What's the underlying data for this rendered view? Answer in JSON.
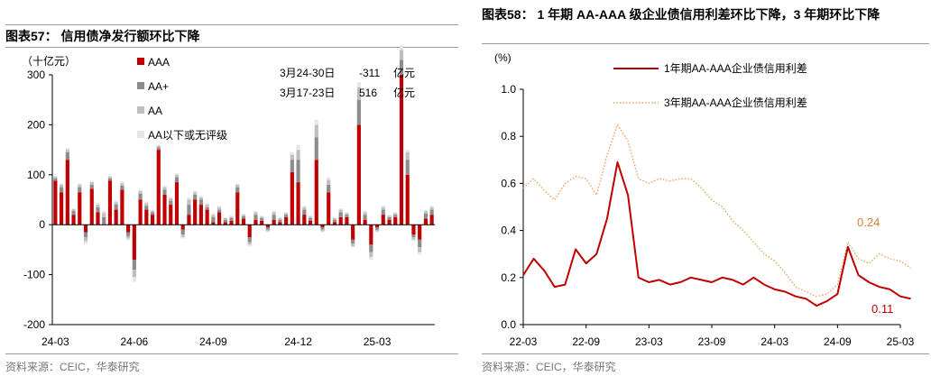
{
  "left": {
    "title": "图表57： 信用债净发行额环比下降",
    "source": "资料来源：CEIC，华泰研究",
    "unit_label": "（十亿元）",
    "annotation": {
      "rows": [
        {
          "period": "3月24-30日",
          "value": "-311",
          "unit": "亿元"
        },
        {
          "period": "3月17-23日",
          "value": "516",
          "unit": "亿元"
        }
      ]
    },
    "chart_data": {
      "type": "bar",
      "stacked": true,
      "ylim": [
        -200,
        300
      ],
      "yticks": [
        -200,
        -100,
        0,
        100,
        200,
        300
      ],
      "x_ticks": [
        {
          "i": 0,
          "label": "24-03"
        },
        {
          "i": 13,
          "label": "24-06"
        },
        {
          "i": 26,
          "label": "24-09"
        },
        {
          "i": 40,
          "label": "24-12"
        },
        {
          "i": 53,
          "label": "25-03"
        }
      ],
      "legend_position": "top-left",
      "colors": {
        "AAA": "#c00000",
        "AA+": "#8c8c8c",
        "AA": "#bfbfbf",
        "AA_below": "#e6e6e6"
      },
      "series": [
        {
          "name": "AAA",
          "values": [
            88,
            65,
            130,
            20,
            65,
            -15,
            72,
            25,
            0,
            88,
            30,
            70,
            -15,
            -70,
            50,
            30,
            20,
            150,
            60,
            40,
            85,
            -10,
            20,
            50,
            40,
            30,
            5,
            25,
            5,
            8,
            65,
            12,
            -25,
            10,
            8,
            -5,
            10,
            5,
            15,
            105,
            85,
            20,
            8,
            130,
            -5,
            65,
            5,
            15,
            15,
            -30,
            200,
            10,
            -40,
            -5,
            20,
            10,
            15,
            300,
            100,
            -20,
            -30,
            12,
            20
          ]
        },
        {
          "name": "AA+",
          "values": [
            5,
            10,
            15,
            8,
            10,
            -10,
            8,
            10,
            15,
            5,
            10,
            8,
            -8,
            -20,
            12,
            8,
            5,
            5,
            10,
            8,
            10,
            -10,
            20,
            10,
            10,
            5,
            10,
            5,
            5,
            5,
            10,
            5,
            -10,
            10,
            5,
            -5,
            10,
            5,
            5,
            25,
            45,
            10,
            5,
            45,
            -5,
            15,
            5,
            10,
            5,
            -8,
            50,
            10,
            -15,
            -5,
            10,
            5,
            5,
            30,
            30,
            -5,
            -15,
            10,
            10
          ]
        },
        {
          "name": "AA",
          "values": [
            3,
            5,
            5,
            3,
            5,
            -8,
            5,
            5,
            8,
            3,
            5,
            5,
            -5,
            -15,
            5,
            5,
            3,
            3,
            5,
            5,
            5,
            -5,
            10,
            5,
            5,
            5,
            5,
            5,
            3,
            3,
            5,
            3,
            -5,
            5,
            3,
            -3,
            5,
            3,
            3,
            10,
            20,
            5,
            3,
            25,
            -3,
            10,
            3,
            5,
            3,
            -5,
            25,
            5,
            -10,
            -3,
            5,
            3,
            3,
            20,
            15,
            -5,
            -10,
            5,
            5
          ]
        },
        {
          "name": "AA以下或无评级",
          "values": [
            2,
            3,
            3,
            2,
            3,
            -5,
            3,
            3,
            5,
            2,
            3,
            3,
            -3,
            -10,
            3,
            3,
            2,
            2,
            3,
            3,
            3,
            -3,
            5,
            3,
            3,
            3,
            3,
            3,
            2,
            2,
            3,
            2,
            -3,
            3,
            2,
            -2,
            3,
            2,
            2,
            5,
            10,
            3,
            2,
            10,
            -2,
            5,
            2,
            3,
            2,
            -3,
            10,
            3,
            -5,
            -2,
            3,
            2,
            2,
            10,
            5,
            -3,
            -5,
            3,
            3
          ]
        }
      ]
    }
  },
  "right": {
    "title": "图表58： 1 年期 AA-AAA 级企业债信用利差环比下降，3 年期环比下降",
    "source": "资料来源：CEIC，华泰研究",
    "unit_label": "(%)",
    "end_labels": {
      "three_year": "0.24",
      "one_year": "0.11"
    },
    "chart_data": {
      "type": "line",
      "ylim": [
        0,
        1.0
      ],
      "yticks": [
        0.0,
        0.2,
        0.4,
        0.6,
        0.8,
        1.0
      ],
      "x_tick_labels": [
        "22-03",
        "22-09",
        "23-03",
        "23-09",
        "24-03",
        "24-09",
        "25-03"
      ],
      "legend_position": "top-center",
      "series": [
        {
          "name": "1年期AA-AAA企业债信用利差",
          "color": "#c00000",
          "style": "solid",
          "x": [
            "22-03",
            "22-04",
            "22-05",
            "22-06",
            "22-07",
            "22-08",
            "22-09",
            "22-10",
            "22-11",
            "22-12",
            "23-01",
            "23-02",
            "23-03",
            "23-04",
            "23-05",
            "23-06",
            "23-07",
            "23-08",
            "23-09",
            "23-10",
            "23-11",
            "23-12",
            "24-01",
            "24-02",
            "24-03",
            "24-04",
            "24-05",
            "24-06",
            "24-07",
            "24-08",
            "24-09",
            "24-10",
            "24-11",
            "24-12",
            "25-01",
            "25-02",
            "25-03",
            "25-04"
          ],
          "values": [
            0.21,
            0.28,
            0.23,
            0.16,
            0.17,
            0.32,
            0.26,
            0.3,
            0.45,
            0.69,
            0.55,
            0.2,
            0.18,
            0.19,
            0.17,
            0.18,
            0.2,
            0.19,
            0.18,
            0.2,
            0.19,
            0.17,
            0.2,
            0.17,
            0.15,
            0.14,
            0.12,
            0.11,
            0.08,
            0.1,
            0.13,
            0.33,
            0.21,
            0.18,
            0.16,
            0.15,
            0.12,
            0.11
          ]
        },
        {
          "name": "3年期AA-AAA企业债信用利差",
          "color": "#f0a060",
          "style": "dotted",
          "x": [
            "22-03",
            "22-04",
            "22-05",
            "22-06",
            "22-07",
            "22-08",
            "22-09",
            "22-10",
            "22-11",
            "22-12",
            "23-01",
            "23-02",
            "23-03",
            "23-04",
            "23-05",
            "23-06",
            "23-07",
            "23-08",
            "23-09",
            "23-10",
            "23-11",
            "23-12",
            "24-01",
            "24-02",
            "24-03",
            "24-04",
            "24-05",
            "24-06",
            "24-07",
            "24-08",
            "24-09",
            "24-10",
            "24-11",
            "24-12",
            "25-01",
            "25-02",
            "25-03",
            "25-04"
          ],
          "values": [
            0.58,
            0.62,
            0.57,
            0.53,
            0.6,
            0.63,
            0.62,
            0.55,
            0.72,
            0.85,
            0.78,
            0.62,
            0.6,
            0.62,
            0.61,
            0.62,
            0.62,
            0.58,
            0.53,
            0.5,
            0.44,
            0.4,
            0.35,
            0.3,
            0.27,
            0.22,
            0.16,
            0.14,
            0.12,
            0.13,
            0.17,
            0.35,
            0.28,
            0.26,
            0.3,
            0.28,
            0.27,
            0.24
          ]
        }
      ]
    }
  }
}
